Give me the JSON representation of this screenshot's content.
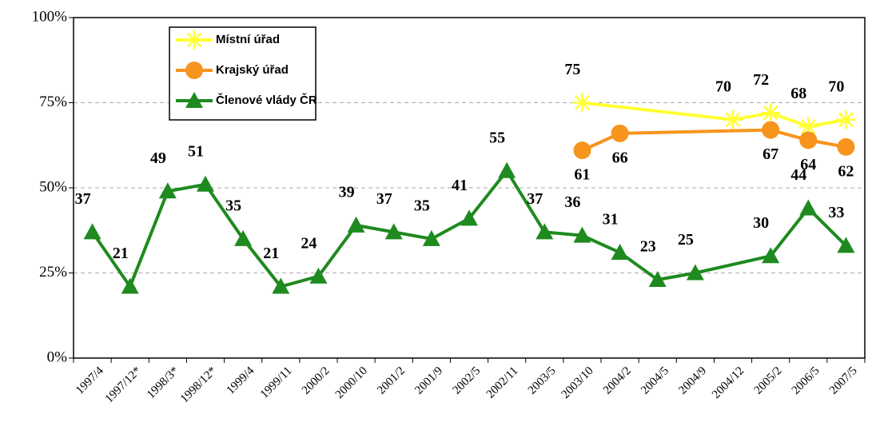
{
  "chart_data": {
    "type": "line",
    "categories": [
      "1997/4",
      "1997/12*",
      "1998/3*",
      "1998/12*",
      "1999/4",
      "1999/11",
      "2000/2",
      "2000/10",
      "2001/2",
      "2001/9",
      "2002/5",
      "2002/11",
      "2003/5",
      "2003/10",
      "2004/2",
      "2004/5",
      "2004/9",
      "2004/12",
      "2005/2",
      "2006/5",
      "2007/5"
    ],
    "series": [
      {
        "name": "Místní úřad",
        "color": "#ffff33",
        "marker": "star",
        "values": [
          null,
          null,
          null,
          null,
          null,
          null,
          null,
          null,
          null,
          null,
          null,
          null,
          null,
          75,
          null,
          null,
          null,
          70,
          72,
          68,
          70
        ]
      },
      {
        "name": "Krajský úřad",
        "color": "#f7941d",
        "marker": "circle",
        "values": [
          null,
          null,
          null,
          null,
          null,
          null,
          null,
          null,
          null,
          null,
          null,
          null,
          null,
          61,
          66,
          null,
          null,
          null,
          67,
          64,
          62
        ]
      },
      {
        "name": "Členové vlády ČR",
        "color": "#1f8a1f",
        "marker": "triangle",
        "values": [
          37,
          21,
          49,
          51,
          35,
          21,
          24,
          39,
          37,
          35,
          41,
          55,
          37,
          36,
          31,
          23,
          25,
          null,
          30,
          44,
          33
        ]
      }
    ],
    "span_gaps": true,
    "ylim": [
      0,
      100
    ],
    "yticks": [
      {
        "value": 0,
        "label": "0%"
      },
      {
        "value": 25,
        "label": "25%"
      },
      {
        "value": 50,
        "label": "50%"
      },
      {
        "value": 75,
        "label": "75%"
      },
      {
        "value": 100,
        "label": "100%"
      }
    ],
    "grid": true,
    "legend": "upper left"
  }
}
